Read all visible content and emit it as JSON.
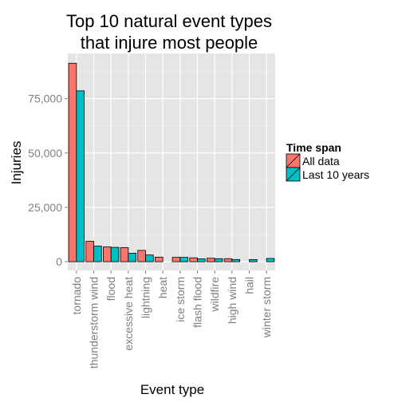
{
  "chart_data": {
    "type": "bar",
    "title_lines": [
      "Top 10 natural event types",
      "that injure most people"
    ],
    "xlabel": "Event type",
    "ylabel": "Injuries",
    "categories": [
      "tornado",
      "thunderstorm wind",
      "flood",
      "excessive heat",
      "lightning",
      "heat",
      "ice storm",
      "flash flood",
      "wildfire",
      "high wind",
      "hail",
      "winter storm"
    ],
    "series": [
      {
        "name": "All data",
        "color": "#F8766D",
        "values": [
          91300,
          9400,
          6800,
          6500,
          5200,
          2100,
          2000,
          1800,
          1600,
          1400,
          0,
          0
        ]
      },
      {
        "name": "Last 10 years",
        "color": "#00BFC4",
        "values": [
          78600,
          7200,
          6600,
          3900,
          3100,
          0,
          2000,
          1300,
          1400,
          1000,
          1000,
          1500
        ]
      }
    ],
    "ylim": [
      -4000,
      95800
    ],
    "yticks": [
      0,
      25000,
      50000,
      75000
    ],
    "ytick_labels": [
      "0",
      "25,000",
      "50,000",
      "75,000"
    ],
    "legend_title": "Time span",
    "legend_position": "right",
    "grid": true
  }
}
